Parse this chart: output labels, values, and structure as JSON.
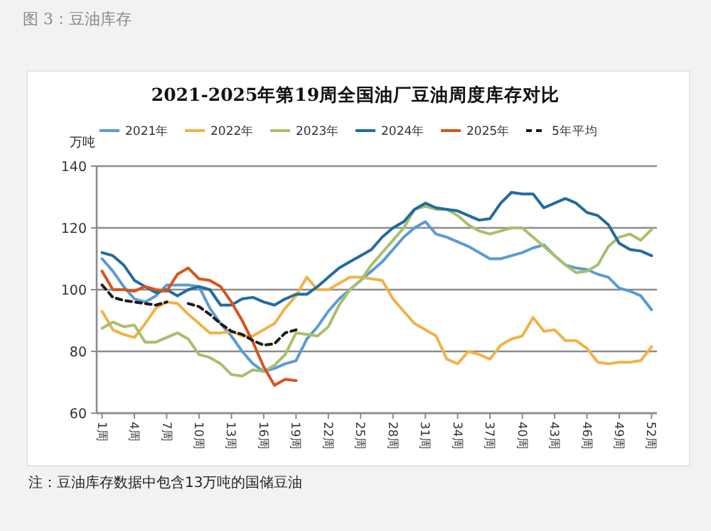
{
  "chart_data": {
    "type": "line",
    "title": "2021-2025年第19周全国油厂豆油周度库存对比",
    "ylabel": "万吨",
    "annotations": [
      "图 3：豆油库存",
      "注：豆油库存数据中包含13万吨的国储豆油"
    ],
    "x": [
      1,
      2,
      3,
      4,
      5,
      6,
      7,
      8,
      9,
      10,
      11,
      12,
      13,
      14,
      15,
      16,
      17,
      18,
      19,
      20,
      21,
      22,
      23,
      24,
      25,
      26,
      27,
      28,
      29,
      30,
      31,
      32,
      33,
      34,
      35,
      36,
      37,
      38,
      39,
      40,
      41,
      42,
      43,
      44,
      45,
      46,
      47,
      48,
      49,
      50,
      51,
      52
    ],
    "xlim": [
      0.5,
      52.5
    ],
    "xticks": [
      {
        "value": 1,
        "label": "1周"
      },
      {
        "value": 4,
        "label": "4周"
      },
      {
        "value": 7,
        "label": "7周"
      },
      {
        "value": 10,
        "label": "10周"
      },
      {
        "value": 13,
        "label": "13周"
      },
      {
        "value": 16,
        "label": "16周"
      },
      {
        "value": 19,
        "label": "19周"
      },
      {
        "value": 22,
        "label": "22周"
      },
      {
        "value": 25,
        "label": "25周"
      },
      {
        "value": 28,
        "label": "28周"
      },
      {
        "value": 31,
        "label": "31周"
      },
      {
        "value": 34,
        "label": "34周"
      },
      {
        "value": 37,
        "label": "37周"
      },
      {
        "value": 40,
        "label": "40周"
      },
      {
        "value": 43,
        "label": "43周"
      },
      {
        "value": 46,
        "label": "46周"
      },
      {
        "value": 49,
        "label": "49周"
      },
      {
        "value": 52,
        "label": "52周"
      }
    ],
    "ylim": [
      60,
      140
    ],
    "yticks": [
      60,
      80,
      100,
      120,
      140
    ],
    "grid": "y",
    "legend": "top",
    "marker": "none",
    "series": [
      {
        "name": "2021年",
        "color": "#5b9bd5",
        "values": [
          110,
          106,
          101,
          97,
          96,
          98,
          101.5,
          101.5,
          101.5,
          101,
          94,
          89,
          85,
          80,
          76,
          73.5,
          74.5,
          76,
          77,
          84,
          88,
          93,
          97,
          100,
          103,
          106,
          109,
          113,
          117,
          120,
          122,
          118,
          117,
          115.5,
          114,
          112,
          110,
          110,
          111,
          112,
          113.5,
          114.5,
          111,
          108,
          107,
          106.5,
          105,
          104,
          100.5,
          99.5,
          98,
          93.5
        ]
      },
      {
        "name": "2022年",
        "color": "#f0b348",
        "values": [
          93,
          87,
          85.5,
          84.5,
          89,
          94,
          96,
          95.5,
          92,
          89,
          86,
          86,
          86.5,
          85,
          85,
          87,
          89,
          94,
          98,
          104,
          100,
          100,
          102,
          104,
          104,
          103.5,
          103,
          97,
          93,
          89,
          87,
          85,
          77.5,
          76,
          80,
          79,
          77.5,
          82,
          84,
          85,
          91,
          86.5,
          87,
          83.5,
          83.5,
          81,
          76.5,
          76,
          76.5,
          76.5,
          77,
          81.5
        ]
      },
      {
        "name": "2023年",
        "color": "#a9bf6c",
        "values": [
          87.5,
          89.5,
          88,
          88.5,
          83,
          83,
          84.5,
          86,
          84,
          79,
          78,
          76,
          72.5,
          72,
          74,
          73.5,
          75.5,
          79,
          86,
          85.5,
          85,
          88,
          95,
          100,
          103,
          108,
          112,
          116,
          120,
          126,
          127,
          126,
          126,
          124,
          121,
          119,
          118,
          119,
          120,
          120,
          117,
          114,
          111,
          108,
          105.5,
          106,
          108,
          114,
          117,
          118,
          116,
          119.5
        ]
      },
      {
        "name": "2024年",
        "color": "#236c9e",
        "values": [
          112,
          111,
          108,
          103,
          101,
          99,
          100,
          98,
          100,
          101,
          100,
          95,
          95,
          97,
          97.5,
          96,
          95,
          97,
          98.5,
          98.5,
          101,
          104,
          107,
          109,
          111,
          113,
          117,
          120,
          122,
          126,
          128,
          126.5,
          126,
          125.5,
          124,
          122.5,
          123,
          128,
          131.5,
          131,
          131,
          126.5,
          128,
          129.5,
          128,
          125,
          124,
          121,
          115,
          113,
          112.5,
          111
        ]
      },
      {
        "name": "2025年",
        "color": "#d6541f",
        "values": [
          106,
          100,
          100,
          99.5,
          101,
          100,
          99.5,
          105,
          107,
          103.5,
          103,
          101,
          96,
          90,
          83,
          75,
          69,
          71,
          70.5,
          null,
          null,
          null,
          null,
          null,
          null,
          null,
          null,
          null,
          null,
          null,
          null,
          null,
          null,
          null,
          null,
          null,
          null,
          null,
          null,
          null,
          null,
          null,
          null,
          null,
          null,
          null,
          null,
          null,
          null,
          null,
          null,
          null
        ]
      },
      {
        "name": "5年平均",
        "color": "#1a1a1a",
        "line_style": "dashed",
        "values": [
          101.5,
          97.5,
          96.5,
          96,
          95.5,
          95,
          96,
          null,
          95.5,
          94.5,
          92,
          89,
          86.5,
          85.5,
          83.5,
          82,
          82.5,
          86,
          87,
          null,
          null,
          null,
          null,
          null,
          null,
          null,
          null,
          null,
          null,
          null,
          null,
          null,
          null,
          null,
          null,
          null,
          null,
          null,
          null,
          null,
          null,
          null,
          null,
          null,
          null,
          null,
          null,
          null,
          null,
          null,
          null,
          null
        ]
      }
    ]
  }
}
